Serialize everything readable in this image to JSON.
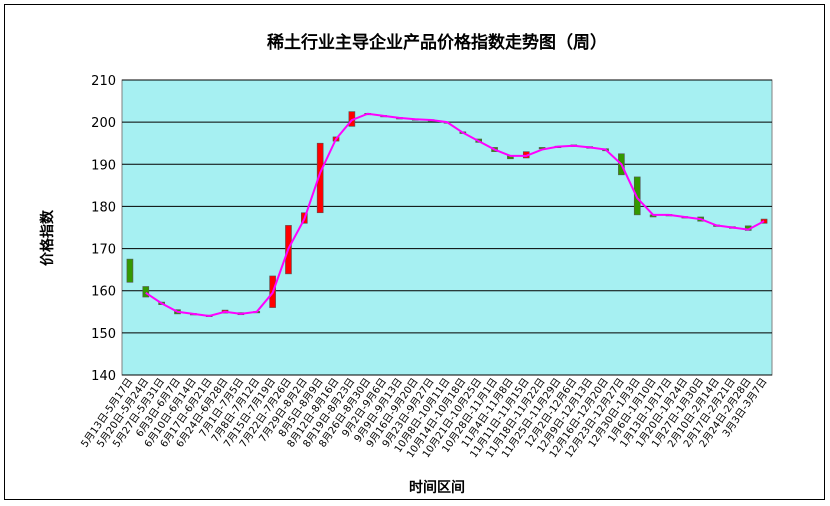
{
  "chart_data": {
    "type": "candlestick",
    "title": "稀土行业主导企业产品价格指数走势图（周）",
    "x_label": "时间区间",
    "y_label": "价格指数",
    "categories": [
      "5月13日-5月17日",
      "5月20日-5月24日",
      "5月27日-5月31日",
      "6月3日-6月7日",
      "6月10日-6月14日",
      "6月17日-6月21日",
      "6月24日-6月28日",
      "7月1日-7月5日",
      "7月8日-7月12日",
      "7月15日-7月19日",
      "7月22日-7月26日",
      "7月29日-8月2日",
      "8月5日-8月9日",
      "8月12日-8月16日",
      "8月19日-8月23日",
      "8月26日-8月30日",
      "9月2日-9月6日",
      "9月9日-9月13日",
      "9月16日-9月20日",
      "9月23日-9月27日",
      "10月8日-10月11日",
      "10月14日-10月18日",
      "10月21日-10月25日",
      "10月28日-11月1日",
      "11月4日-11月8日",
      "11月11日-11月15日",
      "11月18日-11月22日",
      "11月25日-11月29日",
      "12月2日-12月6日",
      "12月9日-12月13日",
      "12月16日-12月20日",
      "12月23日-12月27日",
      "12月30日-1月3日",
      "1月6日-1月10日",
      "1月13日-1月17日",
      "1月20日-1月24日",
      "1月27日-1月30日",
      "2月10日-2月14日",
      "2月17日-2月21日",
      "2月24日-2月28日",
      "3月3日-3月7日"
    ],
    "open": [
      167.5,
      161,
      157.3,
      155.5,
      154.6,
      154.2,
      154.7,
      154.8,
      155.1,
      156,
      164,
      176,
      178.5,
      195.5,
      199,
      202.1,
      201.6,
      201.1,
      200.8,
      200.6,
      200.1,
      197.7,
      196,
      194,
      192,
      191.5,
      194,
      194.3,
      194.6,
      194.2,
      193.7,
      192.5,
      187,
      178,
      178.1,
      177.6,
      177.5,
      175.6,
      175.2,
      175.4,
      176
    ],
    "close": [
      162,
      158.5,
      156.7,
      154.5,
      154.4,
      153.9,
      155.4,
      154.3,
      154.9,
      163.5,
      175.5,
      178.5,
      195,
      196.5,
      202.5,
      201.9,
      201.4,
      200.9,
      200.6,
      200.4,
      199.9,
      197.3,
      195.2,
      193,
      191.3,
      193,
      193.7,
      194.1,
      194.2,
      193.8,
      193.2,
      187.5,
      178,
      177.5,
      177.9,
      177.4,
      176.5,
      175.4,
      174.8,
      174.3,
      177
    ],
    "up_color": "#ff0000",
    "down_color": "#339900",
    "line_values": [
      null,
      159.5,
      157,
      155,
      154.5,
      154,
      155,
      154.5,
      155,
      159.5,
      170,
      177,
      188,
      196,
      200.5,
      202,
      201.5,
      201,
      200.7,
      200.5,
      200,
      197.5,
      195.5,
      193.5,
      192,
      192,
      193.5,
      194.2,
      194.4,
      194,
      193.5,
      190,
      182,
      178,
      178,
      177.5,
      177,
      175.5,
      175,
      174.5,
      176.5
    ],
    "line_color": "#ff00ff",
    "ylim": [
      140,
      210
    ],
    "yticks": [
      140,
      150,
      160,
      170,
      180,
      190,
      200,
      210
    ],
    "grid": true,
    "plot_color": "#a6f0f2"
  }
}
